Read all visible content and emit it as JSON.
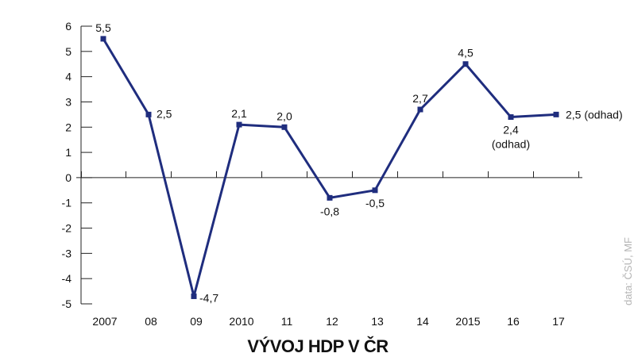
{
  "chart_data": {
    "type": "line",
    "title": "VÝVOJ HDP V ČR",
    "categories": [
      "2007",
      "08",
      "09",
      "2010",
      "11",
      "12",
      "13",
      "14",
      "2015",
      "16",
      "17"
    ],
    "series": [
      {
        "values": [
          5.5,
          2.5,
          -4.7,
          2.1,
          2.0,
          -0.8,
          -0.5,
          2.7,
          4.5,
          2.4,
          2.5
        ]
      }
    ],
    "data_labels": [
      "5,5",
      "2,5",
      "-4,7",
      "2,1",
      "2,0",
      "-0,8",
      "-0,5",
      "2,7",
      "4,5",
      "2,4",
      "2,5 (odhad)"
    ],
    "data_label_notes": [
      "",
      "",
      "",
      "",
      "",
      "",
      "",
      "",
      "",
      "(odhad)",
      ""
    ],
    "y_ticks": [
      "-5",
      "-4",
      "-3",
      "-2",
      "-1",
      "0",
      "1",
      "2",
      "3",
      "4",
      "5",
      "6"
    ],
    "ylim": [
      -5,
      6
    ],
    "source": "data: ČSÚ, MF",
    "grid": false,
    "colors": {
      "line": "#1f2d7e",
      "axis": "#222222",
      "text": "#111111",
      "source": "#b5b5b5"
    }
  }
}
